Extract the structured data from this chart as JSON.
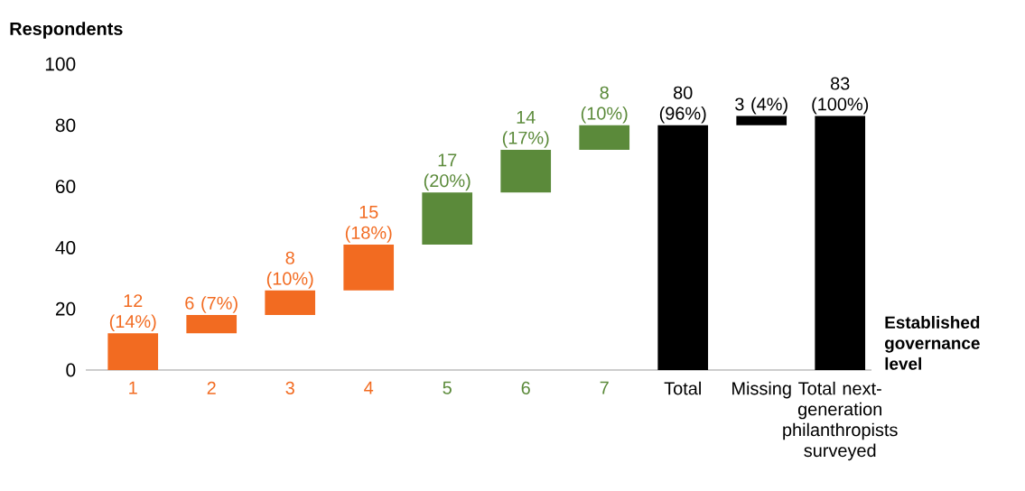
{
  "chart_data": {
    "type": "bar",
    "ylabel": "Respondents",
    "xlabel": "Established governance level",
    "categories": [
      "1",
      "2",
      "3",
      "4",
      "5",
      "6",
      "7",
      "Total",
      "Missing",
      "Total next-generation philanthropists surveyed"
    ],
    "values": [
      12,
      6,
      8,
      15,
      17,
      14,
      8,
      80,
      3,
      83
    ],
    "base": [
      0,
      12,
      18,
      26,
      41,
      58,
      72,
      0,
      80,
      0
    ],
    "colors": [
      "#f26b21",
      "#f26b21",
      "#f26b21",
      "#f26b21",
      "#5b8a3a",
      "#5b8a3a",
      "#5b8a3a",
      "#000000",
      "#000000",
      "#000000"
    ],
    "value_labels": [
      "12 (14%)",
      "6 (7%)",
      "8 (10%)",
      "15 (18%)",
      "17 (20%)",
      "14 (17%)",
      "8 (10%)",
      "80 (96%)",
      "3 (4%)",
      "83 (100%)"
    ],
    "ylim": [
      0,
      100
    ],
    "yticks": [
      0,
      20,
      40,
      60,
      80,
      100
    ]
  }
}
